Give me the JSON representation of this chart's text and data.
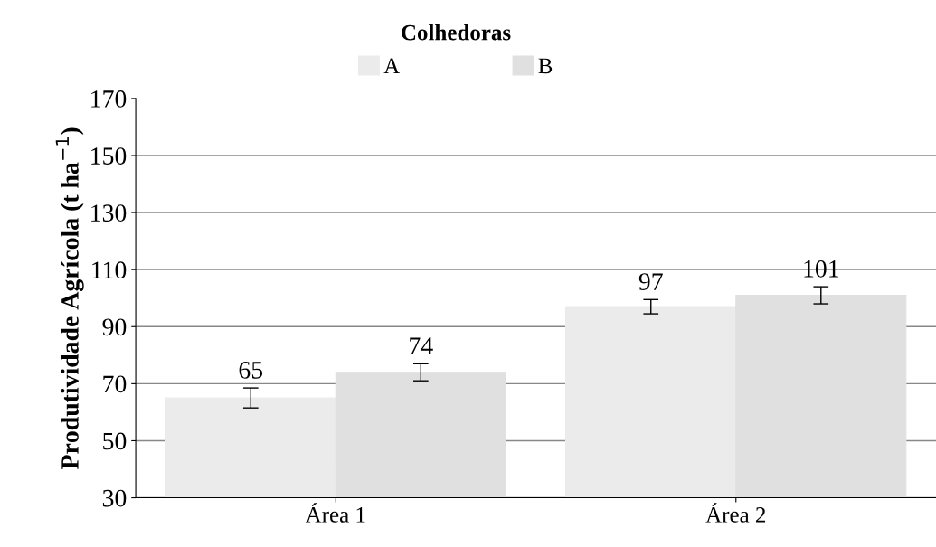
{
  "chart_data": {
    "type": "bar",
    "legend_title": "Colhedoras",
    "ylabel": "Produtividade Agrícola (t ha$^{−1}$)",
    "categories": [
      "Área 1",
      "Área 2"
    ],
    "series": [
      {
        "name": "A",
        "color": "#ebebeb",
        "values": [
          65,
          97
        ],
        "errors": [
          3.5,
          2.5
        ]
      },
      {
        "name": "B",
        "color": "#e0e0e0",
        "values": [
          74,
          101
        ],
        "errors": [
          3,
          3
        ]
      }
    ],
    "ylim": [
      30,
      170
    ],
    "yticks": [
      30,
      50,
      70,
      90,
      110,
      130,
      150,
      170
    ],
    "grid": "y",
    "legend": "top",
    "data_labels": true
  }
}
